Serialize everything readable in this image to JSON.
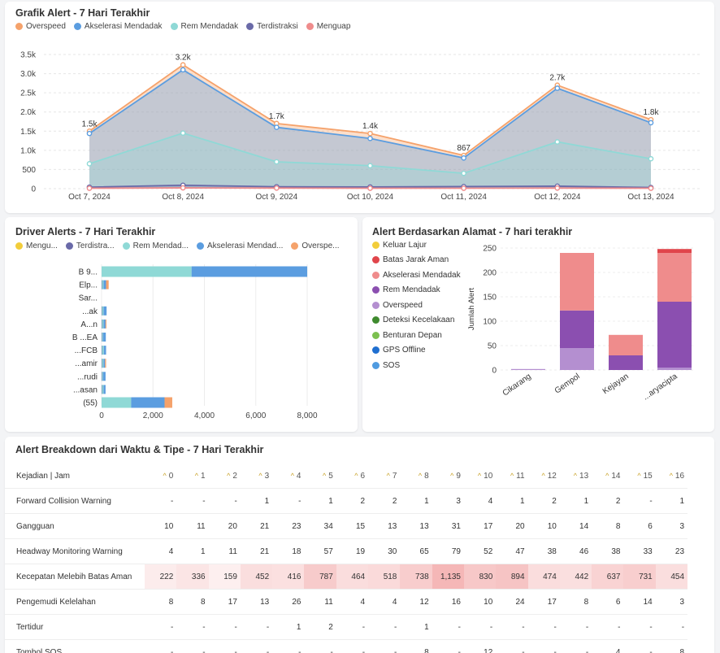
{
  "card1": {
    "title": "Grafik Alert - 7 Hari Terakhir",
    "legend": [
      {
        "label": "Overspeed",
        "color": "#f5a26b"
      },
      {
        "label": "Akselerasi Mendadak",
        "color": "#5b9de0"
      },
      {
        "label": "Rem Mendadak",
        "color": "#8fd9d6"
      },
      {
        "label": "Terdistraksi",
        "color": "#6a6aa8"
      },
      {
        "label": "Menguap",
        "color": "#ef8c8c"
      }
    ]
  },
  "card2": {
    "title": "Driver Alerts - 7 Hari Terakhir",
    "legend": [
      {
        "label": "Mengu...",
        "color": "#f2cd3b"
      },
      {
        "label": "Terdistra...",
        "color": "#6a6aa8"
      },
      {
        "label": "Rem Mendad...",
        "color": "#8fd9d6"
      },
      {
        "label": "Akselerasi Mendad...",
        "color": "#5b9de0"
      },
      {
        "label": "Overspe...",
        "color": "#f5a26b"
      }
    ]
  },
  "card3": {
    "title": "Alert Berdasarkan Alamat - 7 hari terakhir",
    "legend": [
      {
        "label": "Keluar Lajur",
        "color": "#f2cd3b"
      },
      {
        "label": "Batas Jarak Aman",
        "color": "#e0454b"
      },
      {
        "label": "Akselerasi Mendadak",
        "color": "#ef8c8c"
      },
      {
        "label": "Rem Mendadak",
        "color": "#8b4fb0"
      },
      {
        "label": "Overspeed",
        "color": "#b48fd0"
      },
      {
        "label": "Deteksi Kecelakaan",
        "color": "#3f8a2e"
      },
      {
        "label": "Benturan Depan",
        "color": "#7cc04f"
      },
      {
        "label": "GPS Offline",
        "color": "#1f6fd0"
      },
      {
        "label": "SOS",
        "color": "#4f9be0"
      }
    ]
  },
  "card4": {
    "title": "Alert Breakdown dari Waktu & Tipe - 7 Hari Terakhir",
    "header_label": "Kejadian | Jam",
    "hours": [
      "0",
      "1",
      "2",
      "3",
      "4",
      "5",
      "6",
      "7",
      "8",
      "9",
      "10",
      "11",
      "12",
      "13",
      "14",
      "15",
      "16"
    ],
    "rows": [
      {
        "label": "Forward Collision Warning",
        "values": [
          "-",
          "-",
          "-",
          "1",
          "-",
          "1",
          "2",
          "2",
          "1",
          "3",
          "4",
          "1",
          "2",
          "1",
          "2",
          "-",
          "1"
        ]
      },
      {
        "label": "Gangguan",
        "values": [
          "10",
          "11",
          "20",
          "21",
          "23",
          "34",
          "15",
          "13",
          "13",
          "31",
          "17",
          "20",
          "10",
          "14",
          "8",
          "6",
          "3"
        ]
      },
      {
        "label": "Headway Monitoring Warning",
        "values": [
          "4",
          "1",
          "11",
          "21",
          "18",
          "57",
          "19",
          "30",
          "65",
          "79",
          "52",
          "47",
          "38",
          "46",
          "38",
          "33",
          "23"
        ]
      },
      {
        "label": "Kecepatan Melebih Batas Aman",
        "values": [
          "222",
          "336",
          "159",
          "452",
          "416",
          "787",
          "464",
          "518",
          "738",
          "1,135",
          "830",
          "894",
          "474",
          "442",
          "637",
          "731",
          "454"
        ]
      },
      {
        "label": "Pengemudi Kelelahan",
        "values": [
          "8",
          "8",
          "17",
          "13",
          "26",
          "11",
          "4",
          "4",
          "12",
          "16",
          "10",
          "24",
          "17",
          "8",
          "6",
          "14",
          "3"
        ]
      },
      {
        "label": "Tertidur",
        "values": [
          "-",
          "-",
          "-",
          "-",
          "1",
          "2",
          "-",
          "-",
          "1",
          "-",
          "-",
          "-",
          "-",
          "-",
          "-",
          "-",
          "-"
        ]
      },
      {
        "label": "Tombol SOS",
        "values": [
          "-",
          "-",
          "-",
          "-",
          "-",
          "-",
          "-",
          "-",
          "8",
          "-",
          "12",
          "-",
          "-",
          "-",
          "4",
          "-",
          "8"
        ]
      }
    ]
  },
  "chart_data": [
    {
      "type": "area",
      "title": "Grafik Alert - 7 Hari Terakhir",
      "categories": [
        "Oct 7, 2024",
        "Oct 8, 2024",
        "Oct 9, 2024",
        "Oct 10, 2024",
        "Oct 11, 2024",
        "Oct 12, 2024",
        "Oct 13, 2024"
      ],
      "totals_labels": [
        "1.5k",
        "3.2k",
        "1.7k",
        "1.4k",
        "867",
        "2.7k",
        "1.8k"
      ],
      "y_ticks": [
        "0",
        "500",
        "1.0k",
        "1.5k",
        "2.0k",
        "2.5k",
        "3.0k",
        "3.5k"
      ],
      "ylim": [
        0,
        3500
      ],
      "stacked": false,
      "series": [
        {
          "name": "Overspeed",
          "color": "#f5a26b",
          "values": [
            1500,
            3230,
            1700,
            1440,
            867,
            2700,
            1800
          ]
        },
        {
          "name": "Akselerasi Mendadak",
          "color": "#5b9de0",
          "values": [
            1440,
            3100,
            1600,
            1310,
            800,
            2620,
            1720
          ]
        },
        {
          "name": "Rem Mendadak",
          "color": "#8fd9d6",
          "values": [
            650,
            1450,
            700,
            600,
            400,
            1220,
            780
          ]
        },
        {
          "name": "Terdistraksi",
          "color": "#6a6aa8",
          "values": [
            40,
            90,
            50,
            45,
            55,
            65,
            30
          ]
        },
        {
          "name": "Menguap",
          "color": "#ef8c8c",
          "values": [
            10,
            20,
            15,
            10,
            10,
            15,
            10
          ]
        }
      ]
    },
    {
      "type": "bar",
      "orientation": "horizontal",
      "stacked": true,
      "title": "Driver Alerts - 7 Hari Terakhir",
      "categories": [
        "B 9...",
        "Elp...",
        "Sar...",
        "...ak",
        "A...n",
        "B ...EA",
        "...FCB",
        "...amir",
        "...rudi",
        "...asan",
        "(55)"
      ],
      "x_ticks": [
        "0",
        "2,000",
        "4,000",
        "6,000",
        "8,000"
      ],
      "xlim": [
        0,
        9200
      ],
      "series": [
        {
          "name": "Mengu...",
          "color": "#f2cd3b",
          "values": [
            0,
            0,
            0,
            0,
            0,
            0,
            0,
            0,
            0,
            0,
            0
          ]
        },
        {
          "name": "Terdistra...",
          "color": "#6a6aa8",
          "values": [
            0,
            15,
            0,
            15,
            15,
            15,
            15,
            15,
            15,
            15,
            0
          ]
        },
        {
          "name": "Rem Mendad...",
          "color": "#8fd9d6",
          "values": [
            3500,
            60,
            0,
            60,
            60,
            40,
            70,
            60,
            40,
            60,
            1150
          ]
        },
        {
          "name": "Akselerasi Mendad...",
          "color": "#5b9de0",
          "values": [
            4500,
            100,
            0,
            120,
            80,
            110,
            90,
            60,
            100,
            80,
            1300
          ]
        },
        {
          "name": "Overspe...",
          "color": "#f5a26b",
          "values": [
            0,
            100,
            0,
            0,
            30,
            0,
            0,
            40,
            0,
            0,
            300
          ]
        }
      ]
    },
    {
      "type": "bar",
      "stacked": true,
      "title": "Alert Berdasarkan Alamat - 7 hari terakhir",
      "ylabel": "Jumlah Alert",
      "categories": [
        "Cikarang",
        "Gempol",
        "Kejayan",
        "...aryacipta"
      ],
      "y_ticks": [
        "0",
        "50",
        "100",
        "150",
        "200",
        "250"
      ],
      "ylim": [
        0,
        260
      ],
      "series": [
        {
          "name": "Overspeed",
          "color": "#b48fd0",
          "values": [
            2,
            45,
            0,
            5
          ]
        },
        {
          "name": "Rem Mendadak",
          "color": "#8b4fb0",
          "values": [
            0,
            77,
            30,
            135
          ]
        },
        {
          "name": "Akselerasi Mendadak",
          "color": "#ef8c8c",
          "values": [
            0,
            118,
            42,
            100
          ]
        },
        {
          "name": "Batas Jarak Aman",
          "color": "#e0454b",
          "values": [
            0,
            0,
            0,
            8
          ]
        }
      ]
    }
  ]
}
